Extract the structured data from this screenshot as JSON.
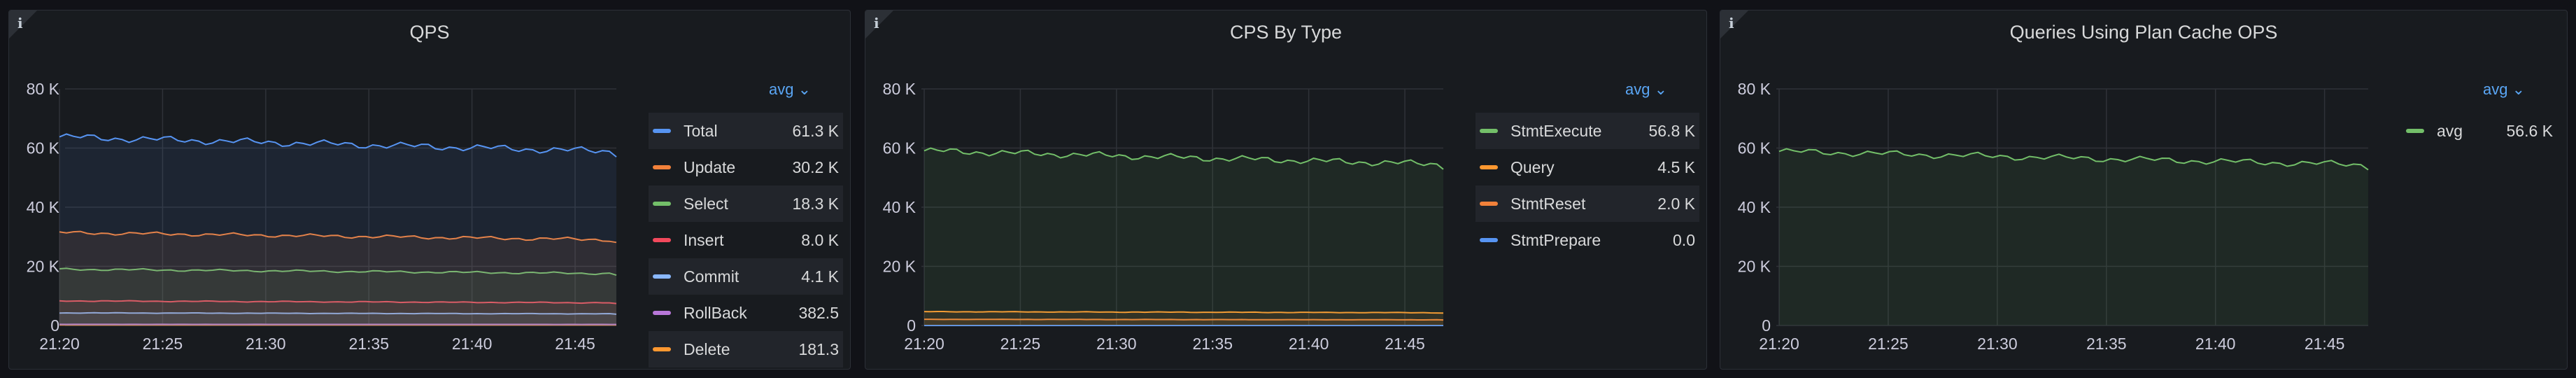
{
  "panels": [
    {
      "title": "QPS",
      "info_icon": "i",
      "legend_header": "avg",
      "chart_data": {
        "type": "line",
        "x_ticks": [
          "21:20",
          "21:25",
          "21:30",
          "21:35",
          "21:40",
          "21:45"
        ],
        "y_ticks": [
          "0",
          "20 K",
          "40 K",
          "60 K",
          "80 K"
        ],
        "ylim": [
          0,
          80000
        ],
        "xlim": [
          "21:20",
          "21:47"
        ],
        "series": [
          {
            "name": "Total",
            "avg": "61.3 K",
            "color": "#5794f2",
            "level": 61300
          },
          {
            "name": "Update",
            "avg": "30.2 K",
            "color": "#f2813a",
            "level": 30200
          },
          {
            "name": "Select",
            "avg": "18.3 K",
            "color": "#73bf69",
            "level": 18300
          },
          {
            "name": "Insert",
            "avg": "8.0 K",
            "color": "#f2495c",
            "level": 8000
          },
          {
            "name": "Commit",
            "avg": "4.1 K",
            "color": "#8ab8ff",
            "level": 4100
          },
          {
            "name": "RollBack",
            "avg": "382.5",
            "color": "#b877d9",
            "level": 382
          },
          {
            "name": "Delete",
            "avg": "181.3",
            "color": "#ff9830",
            "level": 181
          }
        ]
      }
    },
    {
      "title": "CPS By Type",
      "info_icon": "i",
      "legend_header": "avg",
      "chart_data": {
        "type": "line",
        "x_ticks": [
          "21:20",
          "21:25",
          "21:30",
          "21:35",
          "21:40",
          "21:45"
        ],
        "y_ticks": [
          "0",
          "20 K",
          "40 K",
          "60 K",
          "80 K"
        ],
        "ylim": [
          0,
          80000
        ],
        "xlim": [
          "21:20",
          "21:47"
        ],
        "series": [
          {
            "name": "StmtExecute",
            "avg": "56.8 K",
            "color": "#73bf69",
            "level": 56800
          },
          {
            "name": "Query",
            "avg": "4.5 K",
            "color": "#ff9830",
            "level": 4500
          },
          {
            "name": "StmtReset",
            "avg": "2.0 K",
            "color": "#f2813a",
            "level": 2000
          },
          {
            "name": "StmtPrepare",
            "avg": "0.0",
            "color": "#5794f2",
            "level": 0
          }
        ]
      }
    },
    {
      "title": "Queries Using Plan Cache OPS",
      "info_icon": "i",
      "legend_header": "avg",
      "chart_data": {
        "type": "line",
        "x_ticks": [
          "21:20",
          "21:25",
          "21:30",
          "21:35",
          "21:40",
          "21:45"
        ],
        "y_ticks": [
          "0",
          "20 K",
          "40 K",
          "60 K",
          "80 K"
        ],
        "ylim": [
          0,
          80000
        ],
        "xlim": [
          "21:20",
          "21:47"
        ],
        "series": [
          {
            "name": "avg",
            "avg": "56.6 K",
            "color": "#73bf69",
            "level": 56600
          }
        ]
      }
    }
  ]
}
